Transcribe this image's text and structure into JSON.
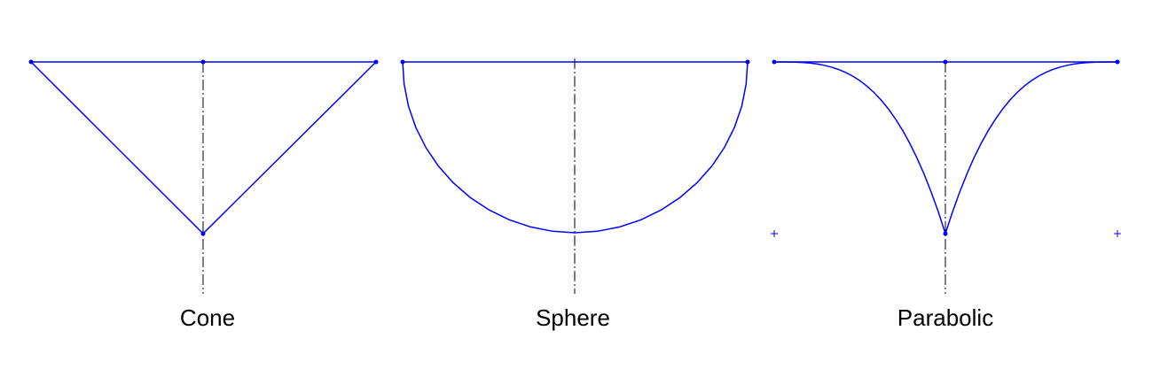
{
  "colors": {
    "profile": "#0000ff",
    "axis": "#000000",
    "background": "#ffffff"
  },
  "shapes": [
    {
      "id": "cone",
      "label": "Cone"
    },
    {
      "id": "sphere",
      "label": "Sphere"
    },
    {
      "id": "parabolic",
      "label": "Parabolic"
    }
  ]
}
